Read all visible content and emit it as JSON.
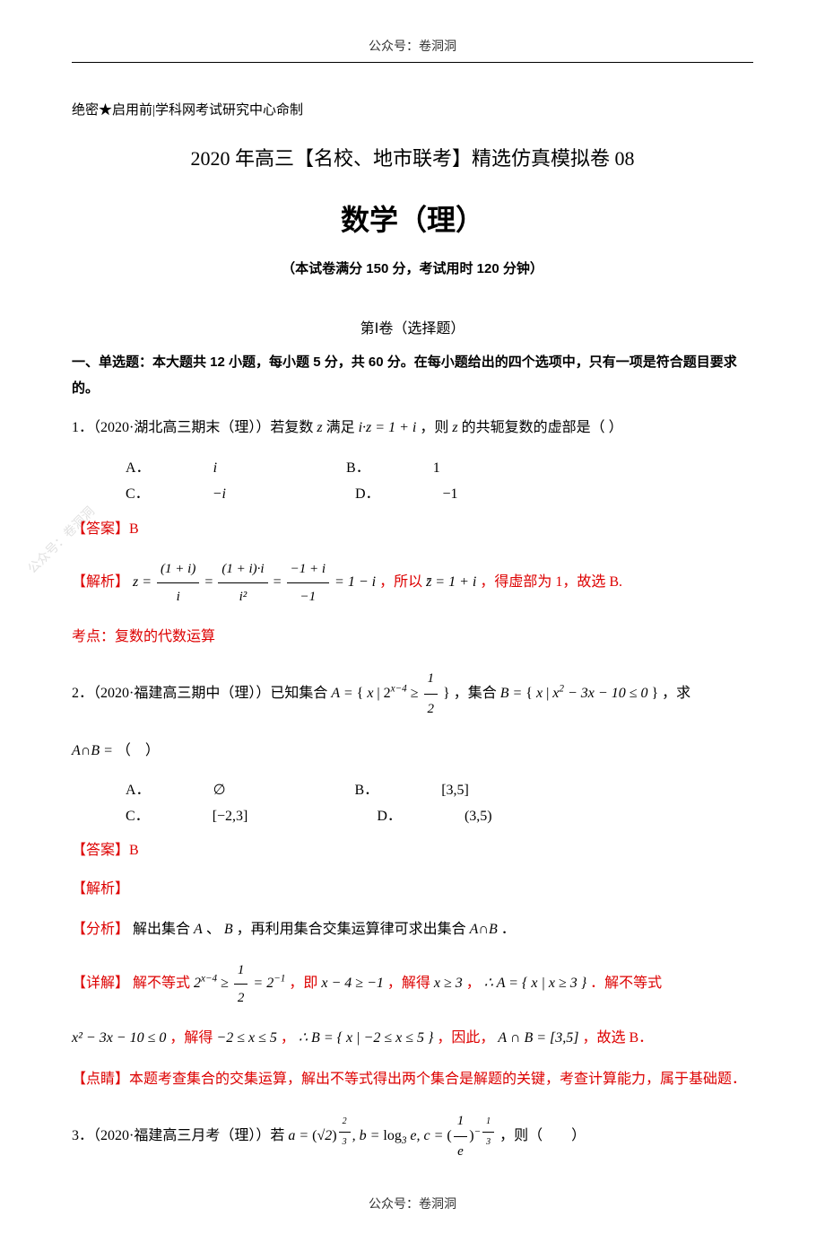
{
  "header": {
    "top_banner": "公众号：卷洞洞",
    "footer_banner": "公众号：卷洞洞",
    "watermark": "公众号：卷洞洞"
  },
  "meta": {
    "confidential": "绝密★启用前|学科网考试研究中心命制",
    "main_title": "2020 年高三【名校、地市联考】精选仿真模拟卷 08",
    "subject": "数学（理）",
    "exam_info": "（本试卷满分 150 分，考试用时 120 分钟）",
    "section1_title": "第Ⅰ卷（选择题）",
    "instructions": "一、单选题：本大题共 12 小题，每小题 5 分，共 60 分。在每小题给出的四个选项中，只有一项是符合题目要求的。"
  },
  "colors": {
    "text": "#000000",
    "accent_red": "#dd0000",
    "watermark_gray": "#cccccc",
    "background": "#ffffff"
  },
  "typography": {
    "body_fontsize": 16,
    "title_fontsize": 22,
    "subject_fontsize": 32,
    "info_fontsize": 15
  },
  "q1": {
    "stem_prefix": "1．（2020·湖北高三期末（理））若复数",
    "stem_var1": "z",
    "stem_mid1": "满足",
    "stem_eq": "i·z = 1 + i",
    "stem_mid2": "，则",
    "stem_var2": "z",
    "stem_suffix": "的共轭复数的虚部是（  ）",
    "optA_label": "A．",
    "optA": "i",
    "optB_label": "B．",
    "optB": "1",
    "optC_label": "C．",
    "optC": "−i",
    "optD_label": "D．",
    "optD": "−1",
    "answer_label": "【答案】",
    "answer": "B",
    "analysis_label": "【解析】",
    "work_eq_lhs": "z =",
    "work_f1_num": "(1 + i)",
    "work_f1_den": "i",
    "work_eq1": "=",
    "work_f2_num": "(1 + i)·i",
    "work_f2_den": "i²",
    "work_eq2": "=",
    "work_f3_num": "−1 + i",
    "work_f3_den": "−1",
    "work_eq3": "= 1 − i",
    "work_tail1": "，所以",
    "work_conj": "z̄ = 1 + i",
    "work_tail2": "，得虚部为 1，故选 B.",
    "topic_label": "考点：",
    "topic": "复数的代数运算"
  },
  "q2": {
    "stem_prefix": "2．（2020·福建高三期中（理））已知集合",
    "setA_expr": "A = { x | 2^{x−4} ≥ 1/2 }",
    "stem_mid": "，集合",
    "setB_expr": "B = { x | x² − 3x − 10 ≤ 0 }",
    "stem_suffix": "，求",
    "ask": "A∩B =",
    "ask_tail": "（　）",
    "optA_label": "A．",
    "optA": "∅",
    "optB_label": "B．",
    "optB": "[3,5]",
    "optC_label": "C．",
    "optC": "[−2,3]",
    "optD_label": "D．",
    "optD": "(3,5)",
    "answer_label": "【答案】",
    "answer": "B",
    "analysis_label": "【解析】",
    "fenxi_label": "【分析】",
    "fenxi_text1": "解出集合",
    "fenxi_A": "A",
    "fenxi_text2": "、",
    "fenxi_B": "B",
    "fenxi_text3": "，再利用集合交集运算律可求出集合",
    "fenxi_AB": "A∩B",
    "fenxi_text4": "．",
    "detail_label": "【详解】",
    "detail_t1": "解不等式",
    "detail_ineq1": "2^{x−4} ≥ 1/2 = 2^{−1}",
    "detail_t2": "，即",
    "detail_ineq2": "x − 4 ≥ −1",
    "detail_t3": "，解得",
    "detail_ineq3": "x ≥ 3",
    "detail_t4": "，",
    "detail_setA": "∴ A = { x | x ≥ 3 }",
    "detail_t5": "．解不等式",
    "detail_line2_eq": "x² − 3x − 10 ≤ 0",
    "detail_l2_t1": "，解得",
    "detail_l2_rng": "−2 ≤ x ≤ 5",
    "detail_l2_t2": "，",
    "detail_l2_setB": "∴ B = { x | −2 ≤ x ≤ 5 }",
    "detail_l2_t3": "，因此，",
    "detail_l2_res": "A ∩ B = [3,5]",
    "detail_l2_t4": "，故选 B．",
    "dianjing_label": "【点睛】",
    "dianjing": "本题考查集合的交集运算，解出不等式得出两个集合是解题的关键，考查计算能力，属于基础题．"
  },
  "q3": {
    "stem_prefix": "3．（2020·福建高三月考（理））若",
    "expr": "a = (√2)^{2/3}, b = log₃ e, c = (1/e)^{−1/3}",
    "stem_suffix": "，则（　　）"
  }
}
